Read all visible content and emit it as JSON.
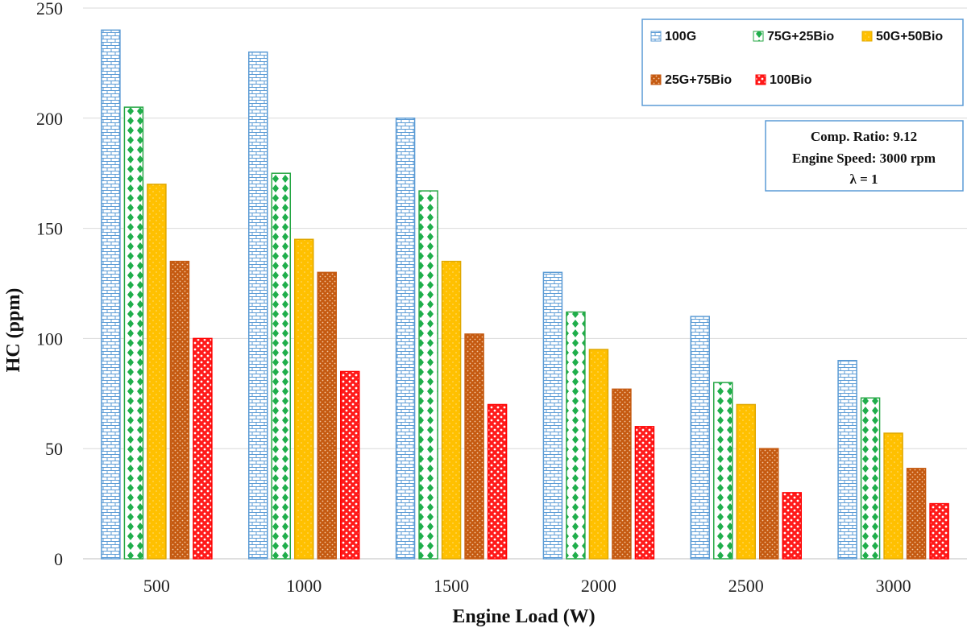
{
  "chart_data": {
    "type": "bar",
    "title": "",
    "xlabel": "Engine Load (W)",
    "ylabel": "HC (ppm)",
    "ylim": [
      0,
      250
    ],
    "yticks": [
      0,
      50,
      100,
      150,
      200,
      250
    ],
    "grid": true,
    "categories": [
      "500",
      "1000",
      "1500",
      "2000",
      "2500",
      "3000"
    ],
    "series": [
      {
        "name": "100G",
        "values": [
          240,
          230,
          200,
          130,
          110,
          90
        ]
      },
      {
        "name": "75G+25Bio",
        "values": [
          205,
          175,
          167,
          112,
          80,
          73
        ]
      },
      {
        "name": "50G+50Bio",
        "values": [
          170,
          145,
          135,
          95,
          70,
          57
        ]
      },
      {
        "name": "25G+75Bio",
        "values": [
          135,
          130,
          102,
          77,
          50,
          41
        ]
      },
      {
        "name": "100Bio",
        "values": [
          100,
          85,
          70,
          60,
          30,
          25
        ]
      }
    ],
    "legend_position": "top-right",
    "annotation": [
      "Comp. Ratio: 9.12",
      "Engine Speed: 3000 rpm",
      "λ = 1"
    ]
  },
  "colors": {
    "100G": "#5b9bd5",
    "75G+25Bio": "#27a745",
    "50G+50Bio": "#ffc000",
    "25G+75Bio": "#c55a11",
    "100Bio": "#ff0000"
  }
}
